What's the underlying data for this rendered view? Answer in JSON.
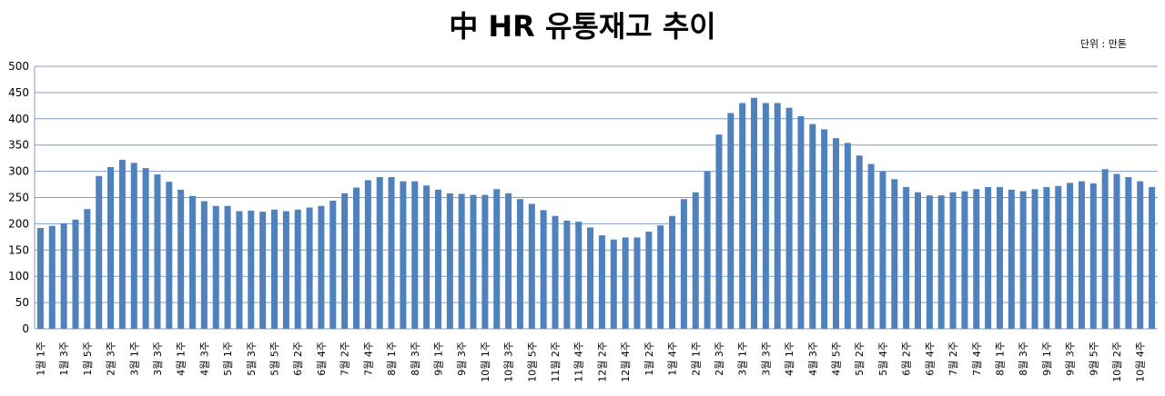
{
  "chart_data": {
    "type": "bar",
    "title": "中 HR 유통재고 추이",
    "unit_note": "단위 : 만톤",
    "categories": [
      "1월 1주",
      null,
      "1월 3주",
      null,
      "1월 5주",
      null,
      "2월 3주",
      null,
      "3월 1주",
      null,
      "3월 3주",
      null,
      "4월 1주",
      null,
      "4월 3주",
      null,
      "5월 1주",
      null,
      "5월 3주",
      null,
      "5월 5주",
      null,
      "6월 2주",
      null,
      "6월 4주",
      null,
      "7월 2주",
      null,
      "7월 4주",
      null,
      "8월 1주",
      null,
      "8월 3주",
      null,
      "9월 1주",
      null,
      "9월 3주",
      null,
      "10월 1주",
      null,
      "10월 3주",
      null,
      "10월 5주",
      null,
      "11월 2주",
      null,
      "11월 4주",
      null,
      "12월 2주",
      null,
      "12월 4주",
      null,
      "1월 2주",
      null,
      "1월 4주",
      null,
      "2월 1주",
      null,
      "2월 3주",
      null,
      "3월 1주",
      null,
      "3월 3주",
      null,
      "4월 1주",
      null,
      "4월 3주",
      null,
      "4월 5주",
      null,
      "5월 2주",
      null,
      "5월 4주",
      null,
      "6월 2주",
      null,
      "6월 4주",
      null,
      "7월 2주",
      null,
      "7월 4주",
      null,
      "8월 1주",
      null,
      "8월 3주",
      null,
      "9월 1주",
      null,
      "9월 3주",
      null,
      "9월 5주",
      null,
      "10월 2주",
      null,
      "10월 4주",
      null
    ],
    "values": [
      192,
      196,
      201,
      208,
      228,
      291,
      308,
      322,
      316,
      306,
      294,
      280,
      265,
      253,
      243,
      234,
      234,
      224,
      225,
      223,
      227,
      224,
      227,
      231,
      234,
      244,
      258,
      269,
      283,
      289,
      289,
      281,
      281,
      273,
      265,
      258,
      257,
      255,
      255,
      266,
      258,
      247,
      238,
      226,
      215,
      206,
      204,
      193,
      178,
      170,
      174,
      174,
      185,
      197,
      215,
      247,
      260,
      300,
      370,
      411,
      430,
      440,
      430,
      430,
      421,
      405,
      390,
      380,
      363,
      354,
      330,
      314,
      300,
      285,
      270,
      260,
      254,
      254,
      260,
      262,
      266,
      270,
      270,
      265,
      262,
      266,
      270,
      272,
      278,
      281,
      277,
      304,
      295,
      289,
      281,
      270
    ],
    "color": "#4f81bd",
    "ylim": [
      0,
      500
    ],
    "yticks": [
      0,
      50,
      100,
      150,
      200,
      250,
      300,
      350,
      400,
      450,
      500
    ],
    "grid": true
  }
}
